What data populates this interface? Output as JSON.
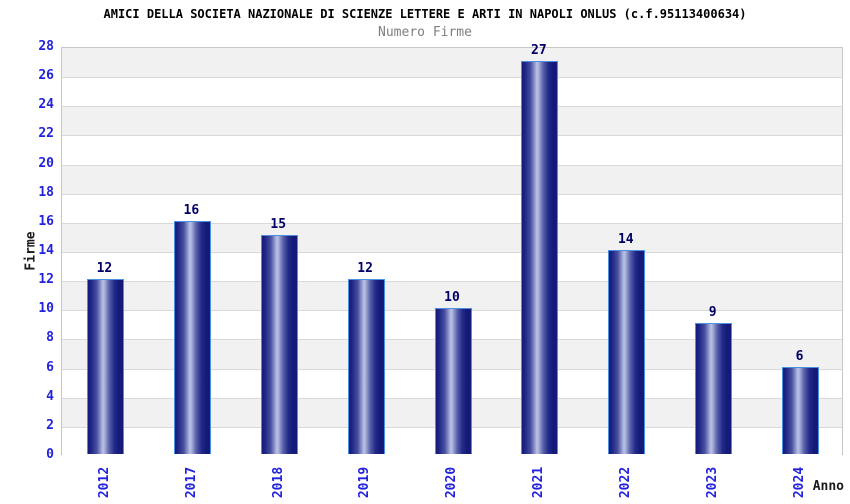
{
  "chart_data": {
    "type": "bar",
    "title": "AMICI DELLA SOCIETA NAZIONALE DI SCIENZE LETTERE E ARTI IN NAPOLI ONLUS (c.f.95113400634)",
    "subtitle": "Numero Firme",
    "xlabel": "Anno",
    "ylabel": "Firme",
    "categories": [
      "2012",
      "2017",
      "2018",
      "2019",
      "2020",
      "2021",
      "2022",
      "2023",
      "2024"
    ],
    "values": [
      12,
      16,
      15,
      12,
      10,
      27,
      14,
      9,
      6
    ],
    "ylim": [
      0,
      28
    ],
    "ytick_step": 2,
    "grid": true,
    "band_fill": "alternating gray/white horizontal bands",
    "legend_position": "none",
    "bar_value_labels": true,
    "colors": {
      "title": "#000000",
      "subtitle": "#7f7f7f",
      "axis_tick_label": "#2222dd",
      "bar_value_label": "#000066",
      "axis_title": "#1a1a1a",
      "bar_border": "#4d8fe0",
      "bar_gradient": [
        "#141a78 0%",
        "#1d2483 8%",
        "#4850a0 25%",
        "#9ba3d2 38%",
        "#bcc3e6 43%",
        "#a5acd8 48%",
        "#5a63ab 60%",
        "#232b8a 75%",
        "#141a78 88%",
        "#141a78 100%"
      ],
      "band_gray": "#f1f1f1",
      "band_white": "#ffffff",
      "gridline": "#d9d9d9",
      "plot_border": "#c6c6c6",
      "axis_line": "#999999"
    }
  }
}
